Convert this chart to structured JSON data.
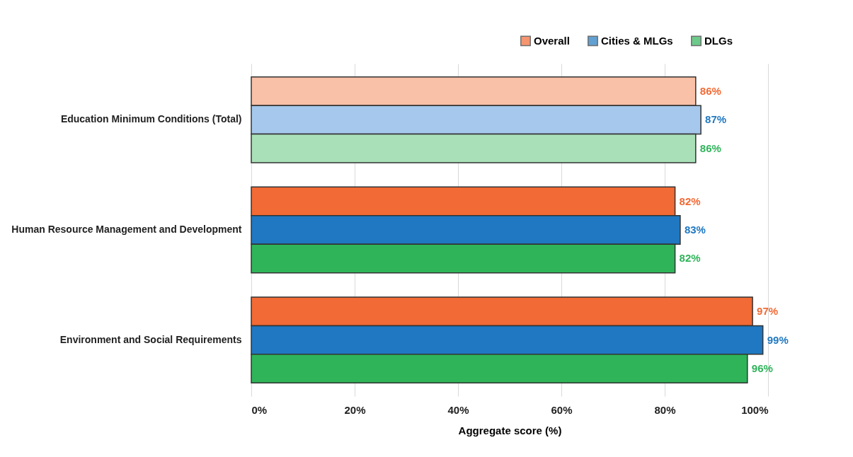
{
  "chart_data": {
    "type": "bar",
    "orientation": "horizontal",
    "xlabel": "Aggregate score (%)",
    "categories": [
      "Education Minimum Conditions (Total)",
      "Human Resource Management and Development",
      "Environment and Social Requirements"
    ],
    "series": [
      {
        "name": "Overall",
        "color": "#f26a35",
        "colors": [
          "#f9c1a8",
          "#f26a35",
          "#f26a35"
        ],
        "values": [
          86,
          82,
          97
        ],
        "value_labels": [
          "86%",
          "82%",
          "97%"
        ]
      },
      {
        "name": "Cities & MLGs",
        "color": "#1f78c1",
        "colors": [
          "#a5c8ec",
          "#1f78c1",
          "#1f78c1"
        ],
        "values": [
          87,
          83,
          99
        ],
        "value_labels": [
          "87%",
          "83%",
          "99%"
        ]
      },
      {
        "name": "DLGs",
        "color": "#2fb45a",
        "colors": [
          "#a9e0b8",
          "#2fb45a",
          "#2fb45a"
        ],
        "values": [
          86,
          82,
          96
        ],
        "value_labels": [
          "86%",
          "82%",
          "96%"
        ]
      }
    ],
    "xlim": [
      0,
      100
    ],
    "xticks": [
      {
        "value": 0,
        "label": "0%"
      },
      {
        "value": 20,
        "label": "20%"
      },
      {
        "value": 40,
        "label": "40%"
      },
      {
        "value": 60,
        "label": "60%"
      },
      {
        "value": 80,
        "label": "80%"
      },
      {
        "value": 100,
        "label": "100%"
      }
    ],
    "grid": "x",
    "legend": "top right"
  }
}
